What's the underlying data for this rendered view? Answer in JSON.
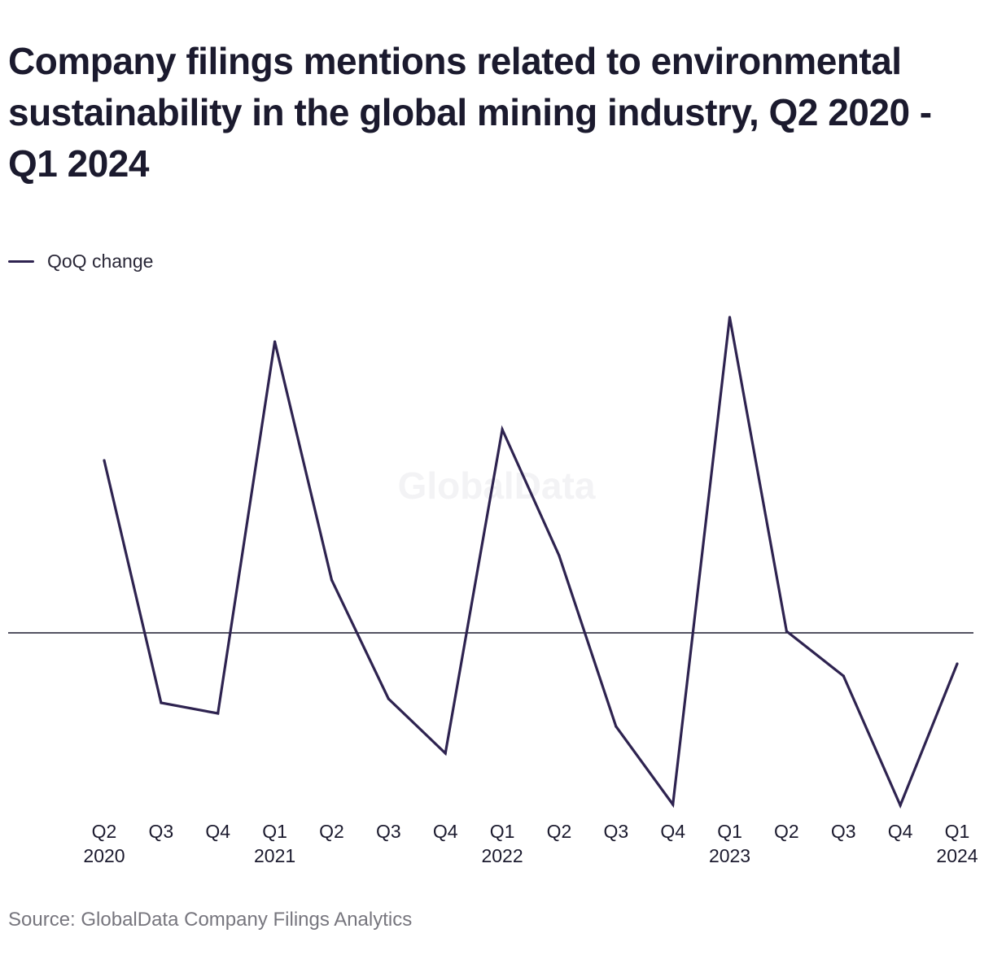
{
  "title": "Company filings mentions related to environmental sustainability in the global mining industry, Q2 2020 - Q1 2024",
  "watermark": "GlobalData",
  "source": "Source: GlobalData Company Filings Analytics",
  "colors": {
    "series": "#2e2350",
    "zero_line": "#1b1a2e",
    "tick_text": "#1b1a2e"
  },
  "chart_data": {
    "type": "line",
    "title": "Company filings mentions related to environmental sustainability in the global mining industry, Q2 2020 - Q1 2024",
    "xlabel": "",
    "ylabel": "",
    "categories": [
      "Q2 2020",
      "Q3 2020",
      "Q4 2020",
      "Q1 2021",
      "Q2 2021",
      "Q3 2021",
      "Q4 2021",
      "Q1 2022",
      "Q2 2022",
      "Q3 2022",
      "Q4 2022",
      "Q1 2023",
      "Q2 2023",
      "Q3 2023",
      "Q4 2023",
      "Q1 2024"
    ],
    "tick_labels": [
      [
        "Q2",
        "2020"
      ],
      [
        "Q3",
        ""
      ],
      [
        "Q4",
        ""
      ],
      [
        "Q1",
        "2021"
      ],
      [
        "Q2",
        ""
      ],
      [
        "Q3",
        ""
      ],
      [
        "Q4",
        ""
      ],
      [
        "Q1",
        "2022"
      ],
      [
        "Q2",
        ""
      ],
      [
        "Q3",
        ""
      ],
      [
        "Q4",
        ""
      ],
      [
        "Q1",
        "2023"
      ],
      [
        "Q2",
        ""
      ],
      [
        "Q3",
        ""
      ],
      [
        "Q4",
        ""
      ],
      [
        "Q1",
        "2024"
      ]
    ],
    "series": [
      {
        "name": "QoQ change",
        "values": [
          21.2,
          -8.6,
          -9.9,
          35.8,
          6.5,
          -8.1,
          -14.8,
          25.0,
          9.5,
          -11.5,
          -21.1,
          38.8,
          0.2,
          -5.3,
          -21.2,
          -3.8
        ]
      }
    ],
    "ylim": [
      -22,
      40
    ],
    "zero_line": true,
    "grid": false,
    "legend_position": "top-left"
  }
}
